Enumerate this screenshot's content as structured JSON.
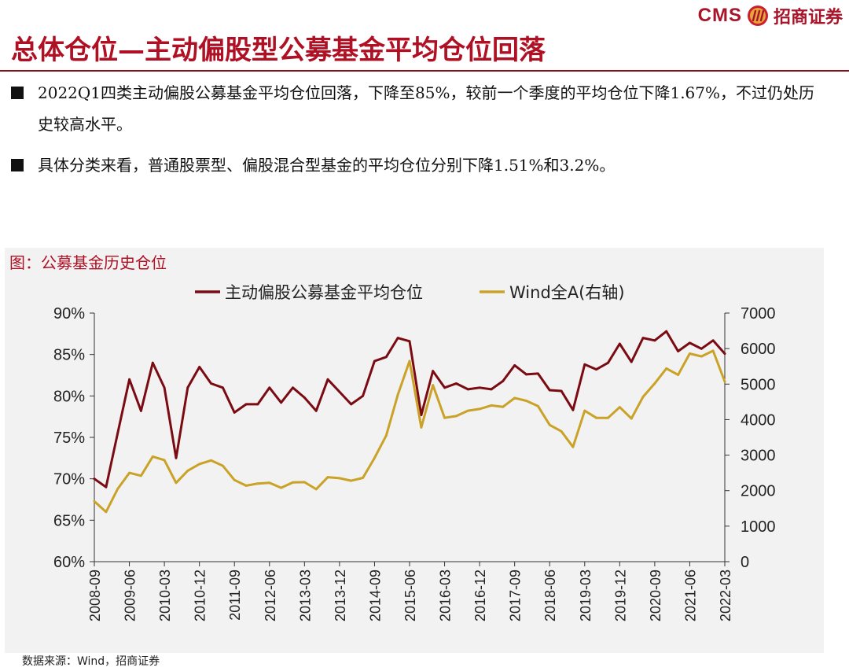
{
  "header": {
    "brand_cms": "CMS",
    "brand_cn": "招商证券",
    "logo_icon": "cms-logo-icon",
    "brand_color": "#a8142a"
  },
  "title": "总体仓位—主动偏股型公募基金平均仓位回落",
  "bullets": [
    "2022Q1四类主动偏股公募基金平均仓位回落，下降至85%，较前一个季度的平均仓位下降1.67%，不过仍处历史较高水平。",
    "具体分类来看，普通股票型、偏股混合型基金的平均仓位分别下降1.51%和3.2%。"
  ],
  "chart_caption": "图：公募基金历史仓位",
  "source": "数据来源：Wind，招商证券",
  "chart_data": {
    "type": "line",
    "legend": [
      "主动偏股公募基金平均仓位",
      "Wind全A(右轴)"
    ],
    "legend_position": "top-center",
    "y_left": {
      "ylim": [
        60,
        90
      ],
      "ticks": [
        "60%",
        "65%",
        "70%",
        "75%",
        "80%",
        "85%",
        "90%"
      ]
    },
    "y_right": {
      "ylim": [
        0,
        7000
      ],
      "ticks": [
        "0",
        "1000",
        "2000",
        "3000",
        "4000",
        "5000",
        "6000",
        "7000"
      ]
    },
    "x_tick_labels": [
      "2008-09",
      "2009-06",
      "2010-03",
      "2010-12",
      "2011-09",
      "2012-06",
      "2013-03",
      "2013-12",
      "2014-09",
      "2015-06",
      "2016-03",
      "2016-12",
      "2017-09",
      "2018-06",
      "2019-03",
      "2019-12",
      "2020-09",
      "2021-06",
      "2022-03"
    ],
    "x": [
      "2008-09",
      "2008-12",
      "2009-03",
      "2009-06",
      "2009-09",
      "2009-12",
      "2010-03",
      "2010-06",
      "2010-09",
      "2010-12",
      "2011-03",
      "2011-06",
      "2011-09",
      "2011-12",
      "2012-03",
      "2012-06",
      "2012-09",
      "2012-12",
      "2013-03",
      "2013-06",
      "2013-09",
      "2013-12",
      "2014-03",
      "2014-06",
      "2014-09",
      "2014-12",
      "2015-03",
      "2015-06",
      "2015-09",
      "2015-12",
      "2016-03",
      "2016-06",
      "2016-09",
      "2016-12",
      "2017-03",
      "2017-06",
      "2017-09",
      "2017-12",
      "2018-03",
      "2018-06",
      "2018-09",
      "2018-12",
      "2019-03",
      "2019-06",
      "2019-09",
      "2019-12",
      "2020-03",
      "2020-06",
      "2020-09",
      "2020-12",
      "2021-03",
      "2021-06",
      "2021-09",
      "2021-12",
      "2022-03"
    ],
    "series": [
      {
        "name": "主动偏股公募基金平均仓位",
        "axis": "left",
        "color": "#7a0b13",
        "values": [
          70,
          69,
          75.5,
          82,
          78.2,
          84,
          81,
          72.5,
          81,
          83.5,
          81.5,
          81,
          78,
          79,
          79,
          81,
          79.2,
          81,
          79.8,
          78.2,
          82,
          80.5,
          79,
          80,
          84.2,
          84.7,
          87,
          86.6,
          77.7,
          83,
          81,
          81.5,
          80.8,
          81,
          80.8,
          81.8,
          83.7,
          82.6,
          82.7,
          80.7,
          80.6,
          78.3,
          83.8,
          83.2,
          84,
          86.3,
          84.1,
          87,
          86.7,
          87.8,
          85.4,
          86.4,
          85.7,
          86.7,
          85.1
        ]
      },
      {
        "name": "Wind全A(右轴)",
        "axis": "right",
        "color": "#c9a227",
        "values": [
          1700,
          1400,
          2050,
          2500,
          2420,
          2960,
          2860,
          2220,
          2560,
          2750,
          2850,
          2700,
          2300,
          2140,
          2200,
          2220,
          2080,
          2230,
          2240,
          2040,
          2380,
          2350,
          2280,
          2360,
          2920,
          3550,
          4700,
          5650,
          3780,
          4970,
          4050,
          4100,
          4250,
          4300,
          4400,
          4360,
          4610,
          4530,
          4380,
          3850,
          3670,
          3230,
          4250,
          4050,
          4050,
          4350,
          4030,
          4640,
          5020,
          5440,
          5260,
          5860,
          5780,
          5940,
          5070
        ]
      }
    ]
  }
}
